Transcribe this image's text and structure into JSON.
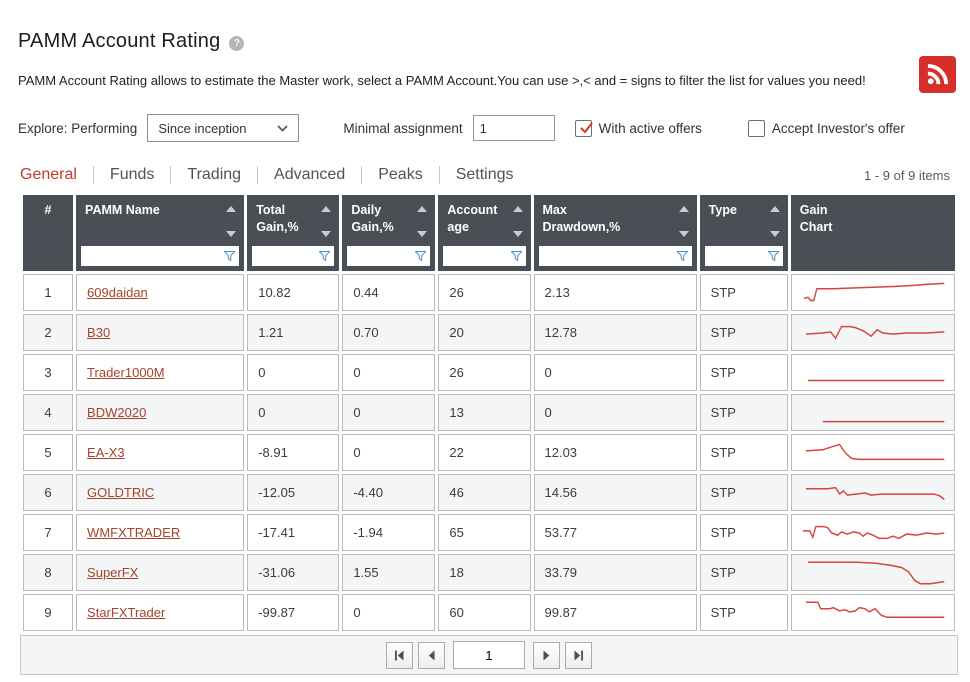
{
  "page": {
    "title": "PAMM Account Rating",
    "description": "PAMM Account Rating allows to estimate the Master work, select a PAMM Account.You can use >,< and = signs to filter the list for values you need!",
    "items_count": "1 - 9 of 9 items"
  },
  "filters": {
    "explore_label": "Explore:",
    "explore_mode": "Performing",
    "period_value": "Since inception",
    "min_assignment_label": "Minimal assignment",
    "min_assignment_value": "1",
    "active_offers": {
      "label": "With active offers",
      "checked": true
    },
    "accept_investor": {
      "label": "Accept Investor's offer",
      "checked": false
    }
  },
  "tabs": [
    {
      "label": "General",
      "active": true
    },
    {
      "label": "Funds",
      "active": false
    },
    {
      "label": "Trading",
      "active": false
    },
    {
      "label": "Advanced",
      "active": false
    },
    {
      "label": "Peaks",
      "active": false
    },
    {
      "label": "Settings",
      "active": false
    }
  ],
  "table": {
    "columns": [
      {
        "label": "#"
      },
      {
        "label": "PAMM Name"
      },
      {
        "label": "Total\nGain,%"
      },
      {
        "label": "Daily\nGain,%"
      },
      {
        "label": "Account\nage"
      },
      {
        "label": "Max\nDrawdown,%"
      },
      {
        "label": "Type"
      },
      {
        "label": "Gain\nChart"
      }
    ],
    "rows": [
      {
        "num": "1",
        "name": "609daidan",
        "total_gain": "10.82",
        "daily_gain": "0.44",
        "age": "26",
        "max_drawdown": "2.13",
        "type": "STP",
        "spark": [
          [
            6,
            19
          ],
          [
            10,
            18
          ],
          [
            13,
            21
          ],
          [
            16,
            21
          ],
          [
            19,
            10
          ],
          [
            35,
            10
          ],
          [
            65,
            9
          ],
          [
            95,
            8
          ],
          [
            115,
            7
          ],
          [
            130,
            6
          ],
          [
            148,
            5
          ]
        ]
      },
      {
        "num": "2",
        "name": "B30",
        "total_gain": "1.21",
        "daily_gain": "0.70",
        "age": "20",
        "max_drawdown": "12.78",
        "type": "STP",
        "spark": [
          [
            8,
            15
          ],
          [
            25,
            14
          ],
          [
            33,
            13
          ],
          [
            38,
            19
          ],
          [
            44,
            8
          ],
          [
            52,
            8
          ],
          [
            58,
            9
          ],
          [
            66,
            12
          ],
          [
            74,
            17
          ],
          [
            80,
            11
          ],
          [
            86,
            14
          ],
          [
            96,
            15
          ],
          [
            110,
            14
          ],
          [
            130,
            14
          ],
          [
            148,
            13
          ]
        ]
      },
      {
        "num": "3",
        "name": "Trader1000M",
        "total_gain": "0",
        "daily_gain": "0",
        "age": "26",
        "max_drawdown": "0",
        "type": "STP",
        "spark": [
          [
            10,
            21
          ],
          [
            148,
            21
          ]
        ]
      },
      {
        "num": "4",
        "name": "BDW2020",
        "total_gain": "0",
        "daily_gain": "0",
        "age": "13",
        "max_drawdown": "0",
        "type": "STP",
        "spark": [
          [
            25,
            22
          ],
          [
            148,
            22
          ]
        ]
      },
      {
        "num": "5",
        "name": "EA-X3",
        "total_gain": "-8.91",
        "daily_gain": "0",
        "age": "22",
        "max_drawdown": "12.03",
        "type": "STP",
        "spark": [
          [
            8,
            12
          ],
          [
            25,
            11
          ],
          [
            35,
            8
          ],
          [
            42,
            6
          ],
          [
            48,
            14
          ],
          [
            54,
            19
          ],
          [
            62,
            20
          ],
          [
            148,
            20
          ]
        ]
      },
      {
        "num": "6",
        "name": "GOLDTRIC",
        "total_gain": "-12.05",
        "daily_gain": "-4.40",
        "age": "46",
        "max_drawdown": "14.56",
        "type": "STP",
        "spark": [
          [
            8,
            10
          ],
          [
            30,
            10
          ],
          [
            38,
            9
          ],
          [
            42,
            15
          ],
          [
            46,
            12
          ],
          [
            50,
            16
          ],
          [
            58,
            15
          ],
          [
            68,
            14
          ],
          [
            74,
            16
          ],
          [
            84,
            15
          ],
          [
            105,
            15
          ],
          [
            125,
            15
          ],
          [
            138,
            15
          ],
          [
            144,
            17
          ],
          [
            148,
            20
          ]
        ]
      },
      {
        "num": "7",
        "name": "WMFXTRADER",
        "total_gain": "-17.41",
        "daily_gain": "-1.94",
        "age": "65",
        "max_drawdown": "53.77",
        "type": "STP",
        "spark": [
          [
            5,
            12
          ],
          [
            12,
            12
          ],
          [
            15,
            18
          ],
          [
            18,
            8
          ],
          [
            26,
            8
          ],
          [
            30,
            9
          ],
          [
            34,
            14
          ],
          [
            40,
            16
          ],
          [
            44,
            13
          ],
          [
            50,
            15
          ],
          [
            56,
            13
          ],
          [
            62,
            14
          ],
          [
            66,
            17
          ],
          [
            70,
            14
          ],
          [
            76,
            16
          ],
          [
            82,
            19
          ],
          [
            90,
            19
          ],
          [
            96,
            17
          ],
          [
            102,
            19
          ],
          [
            110,
            15
          ],
          [
            120,
            16
          ],
          [
            130,
            14
          ],
          [
            140,
            15
          ],
          [
            148,
            14
          ]
        ]
      },
      {
        "num": "8",
        "name": "SuperFX",
        "total_gain": "-31.06",
        "daily_gain": "1.55",
        "age": "18",
        "max_drawdown": "33.79",
        "type": "STP",
        "spark": [
          [
            10,
            4
          ],
          [
            60,
            4
          ],
          [
            80,
            5
          ],
          [
            95,
            7
          ],
          [
            105,
            9
          ],
          [
            112,
            13
          ],
          [
            118,
            21
          ],
          [
            124,
            24
          ],
          [
            134,
            24
          ],
          [
            148,
            22
          ]
        ]
      },
      {
        "num": "9",
        "name": "StarFXTrader",
        "total_gain": "-99.87",
        "daily_gain": "0",
        "age": "60",
        "max_drawdown": "99.87",
        "type": "STP",
        "spark": [
          [
            8,
            4
          ],
          [
            20,
            4
          ],
          [
            23,
            10
          ],
          [
            32,
            10
          ],
          [
            36,
            9
          ],
          [
            42,
            12
          ],
          [
            48,
            11
          ],
          [
            52,
            13
          ],
          [
            58,
            12
          ],
          [
            62,
            9
          ],
          [
            68,
            10
          ],
          [
            72,
            13
          ],
          [
            78,
            10
          ],
          [
            84,
            16
          ],
          [
            90,
            18
          ],
          [
            148,
            18
          ]
        ]
      }
    ]
  },
  "pagination": {
    "page": "1"
  },
  "colors": {
    "accent_red": "#c23a2e",
    "link_red": "#a5432c",
    "header_bg": "#4a4f55",
    "spark_red": "#d6443c",
    "rss_red": "#d42f2a",
    "filter_blue": "#4a90d2",
    "row_alt": "#f3f5f6"
  }
}
